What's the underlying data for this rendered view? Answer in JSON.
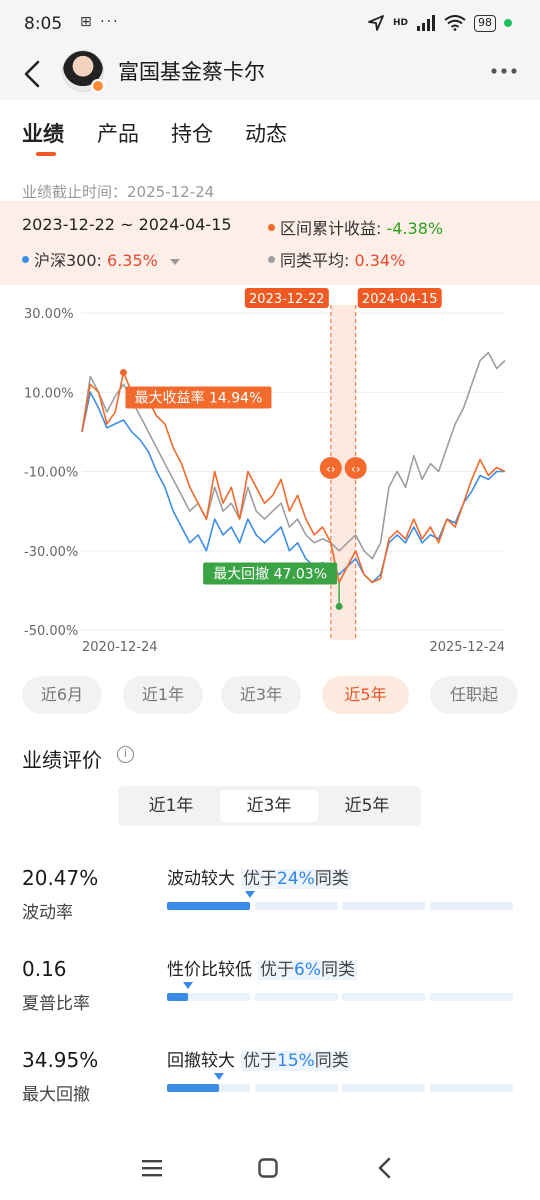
{
  "status": {
    "time": "8:05",
    "left_icons": "⊞ ···",
    "network": "HD",
    "battery": "98"
  },
  "nav": {
    "title": "富国基金蔡卡尔"
  },
  "tabs": [
    {
      "label": "业绩"
    },
    {
      "label": "产品"
    },
    {
      "label": "持仓"
    },
    {
      "label": "动态"
    }
  ],
  "asof": {
    "label": "业绩截止时间：",
    "date": "2025-12-24"
  },
  "range": {
    "text": "2023-12-22 ~ 2024-04-15",
    "return_label": "区间累计收益: ",
    "return_value": "-4.38%",
    "hs300_label": "沪深300: ",
    "hs300_value": "6.35%",
    "peer_label": "同类平均: ",
    "peer_value": "0.34%"
  },
  "colors": {
    "fund": "#f26a2c",
    "hs300": "#3d8ee6",
    "peer": "#9e9e9e",
    "up": "#e84a32",
    "down": "#2ca01c"
  },
  "chart_data": {
    "type": "line",
    "x_start": "2020-12-24",
    "x_end": "2025-12-24",
    "y_ticks": [
      "30.00%",
      "10.00%",
      "-10.00%",
      "-30.00%",
      "-50.00%"
    ],
    "ylim": [
      -50,
      30
    ],
    "x_tick_labels": [
      "2020-12-24",
      "2025-12-24"
    ],
    "series": [
      {
        "color_key": "fund",
        "values": [
          0,
          12,
          10,
          2,
          5,
          15,
          10,
          6,
          8,
          4,
          2,
          -4,
          -8,
          -14,
          -18,
          -22,
          -10,
          -18,
          -14,
          -22,
          -10,
          -14,
          -18,
          -16,
          -12,
          -20,
          -16,
          -22,
          -26,
          -24,
          -28,
          -38,
          -34,
          -30,
          -36,
          -38,
          -37,
          -27,
          -25,
          -27,
          -22,
          -27,
          -24,
          -28,
          -22,
          -24,
          -18,
          -12,
          -7,
          -11,
          -9,
          -10
        ]
      },
      {
        "color_key": "hs300",
        "values": [
          0,
          10,
          6,
          1,
          2,
          3,
          0,
          -2,
          -5,
          -10,
          -14,
          -20,
          -24,
          -28,
          -26,
          -30,
          -22,
          -26,
          -24,
          -28,
          -22,
          -26,
          -28,
          -26,
          -24,
          -30,
          -28,
          -32,
          -34,
          -33,
          -34,
          -36,
          -34,
          -32,
          -36,
          -38,
          -36,
          -28,
          -26,
          -28,
          -24,
          -28,
          -26,
          -27,
          -22,
          -23,
          -18,
          -15,
          -11,
          -12,
          -10,
          -10
        ]
      },
      {
        "color_key": "peer",
        "values": [
          0,
          14,
          10,
          5,
          9,
          12,
          8,
          4,
          0,
          -4,
          -8,
          -12,
          -16,
          -20,
          -18,
          -22,
          -14,
          -20,
          -18,
          -22,
          -14,
          -20,
          -22,
          -20,
          -18,
          -24,
          -22,
          -26,
          -28,
          -27,
          -28,
          -30,
          -28,
          -26,
          -30,
          -32,
          -28,
          -14,
          -10,
          -14,
          -6,
          -12,
          -8,
          -10,
          -4,
          2,
          6,
          12,
          18,
          20,
          16,
          18
        ]
      }
    ],
    "highlight_range": {
      "start_label": "2023-12-22",
      "end_label": "2024-04-15",
      "start_index": 30,
      "end_index": 33
    },
    "annotations": {
      "max_return": {
        "label": "最大收益率 14.94%",
        "index": 5,
        "value": 15
      },
      "max_drawdown": {
        "label": "最大回撤 47.03%",
        "index": 31,
        "value": -38
      }
    },
    "grid": true
  },
  "periods": [
    {
      "label": "近6月"
    },
    {
      "label": "近1年"
    },
    {
      "label": "近3年"
    },
    {
      "label": "近5年"
    },
    {
      "label": "任职起"
    }
  ],
  "evaluation": {
    "title": "业绩评价",
    "info_icon": "i",
    "segments": [
      {
        "label": "近1年"
      },
      {
        "label": "近3年"
      },
      {
        "label": "近5年"
      }
    ],
    "metrics": [
      {
        "value": "20.47%",
        "label": "波动率",
        "desc": "波动较大",
        "better_prefix": "优于",
        "better_pct": "24%",
        "better_suffix": "同类",
        "fill_fraction": 0.24
      },
      {
        "value": "0.16",
        "label": "夏普比率",
        "desc": "性价比较低",
        "better_prefix": "优于",
        "better_pct": "6%",
        "better_suffix": "同类",
        "fill_fraction": 0.06
      },
      {
        "value": "34.95%",
        "label": "最大回撤",
        "desc": "回撤较大",
        "better_prefix": "优于",
        "better_pct": "15%",
        "better_suffix": "同类",
        "fill_fraction": 0.15
      }
    ]
  }
}
